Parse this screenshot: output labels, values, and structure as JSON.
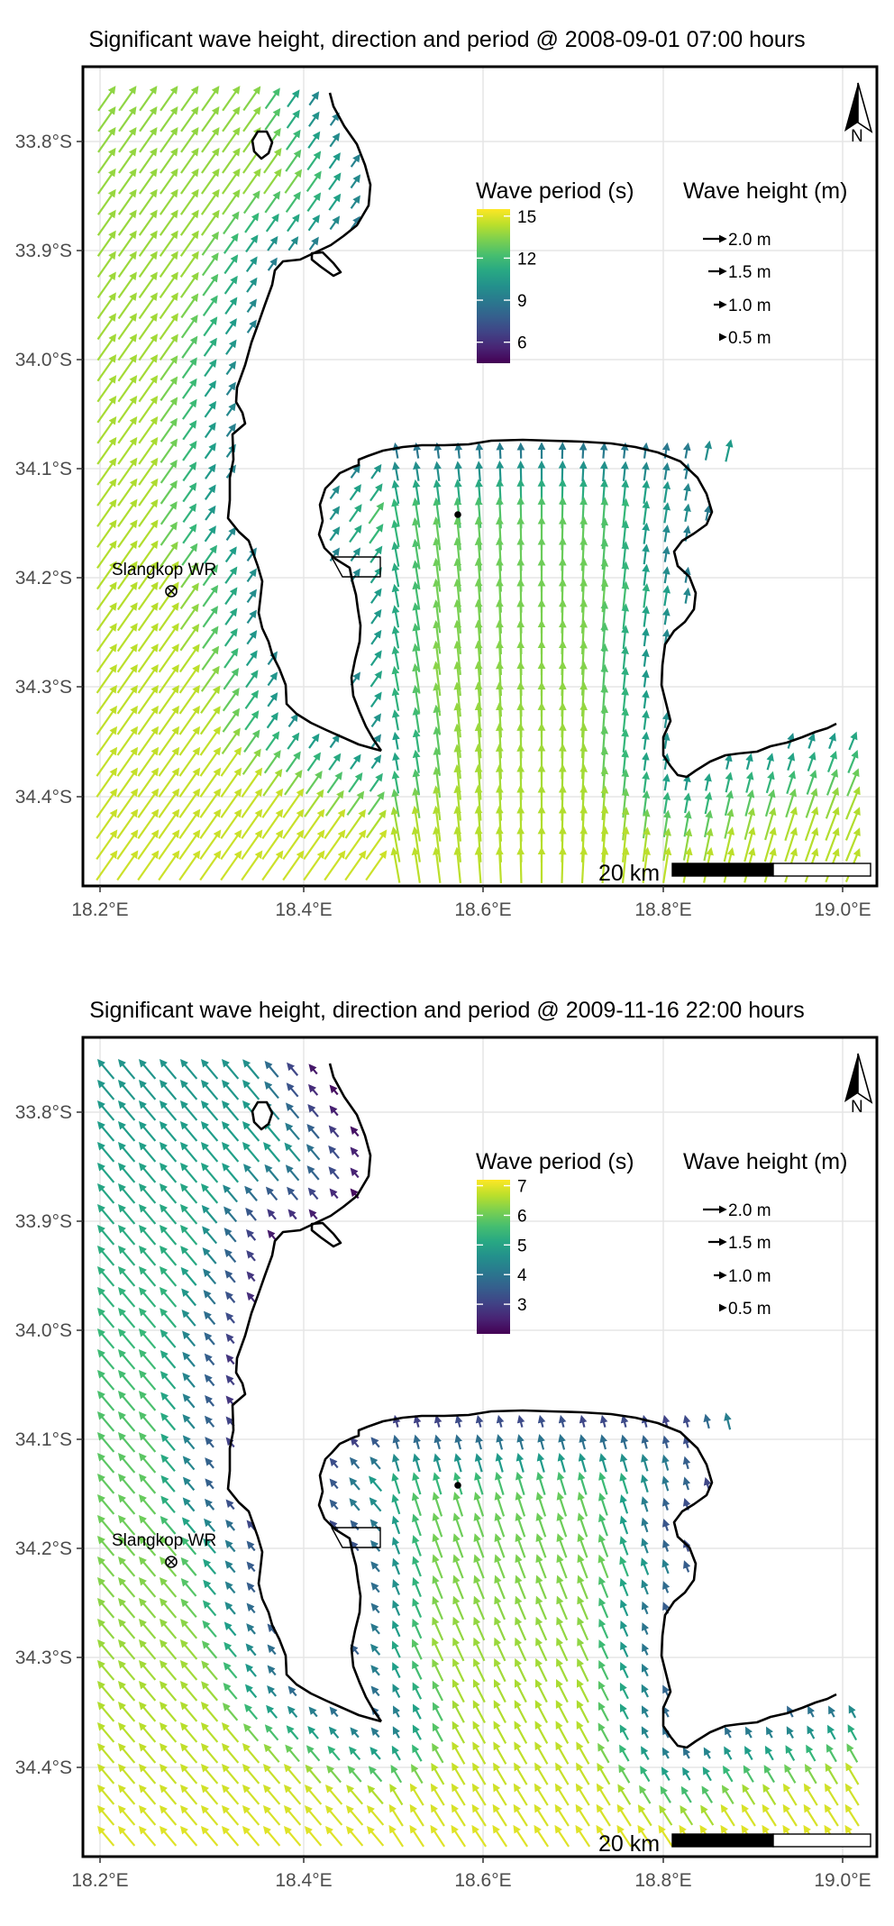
{
  "panels": [
    {
      "title": "Significant wave height, direction and period @ 2008-09-01 07:00 hours",
      "period_legend": {
        "title": "Wave period (s)",
        "ticks": [
          15,
          12,
          9,
          6
        ],
        "min": 4.5,
        "max": 15.5
      },
      "height_legend": {
        "title": "Wave height (m)",
        "entries": [
          "2.0 m",
          "1.5 m",
          "1.0 m",
          "0.5 m"
        ]
      },
      "field": {
        "mode": "swell",
        "offshore_period": 13.5,
        "offshore_height": 2.0,
        "direction_toward_deg": 35
      }
    },
    {
      "title": "Significant wave height, direction and period @ 2009-11-16 22:00 hours",
      "period_legend": {
        "title": "Wave period (s)",
        "ticks": [
          7,
          6,
          5,
          4,
          3
        ],
        "min": 2,
        "max": 7.2
      },
      "height_legend": {
        "title": "Wave height (m)",
        "entries": [
          "2.0 m",
          "1.5 m",
          "1.0 m",
          "0.5 m"
        ]
      },
      "field": {
        "mode": "wind",
        "offshore_period": 6.5,
        "offshore_height": 1.0,
        "direction_toward_deg": -40
      }
    }
  ],
  "axes": {
    "x_ticks": [
      "18.2°E",
      "18.4°E",
      "18.6°E",
      "18.8°E",
      "19.0°E"
    ],
    "y_ticks": [
      "33.8°S",
      "33.9°S",
      "34.0°S",
      "34.1°S",
      "34.2°S",
      "34.3°S",
      "34.4°S"
    ]
  },
  "labels": {
    "site": "Slangkop WR",
    "scale_bar": "20 km",
    "north": "N"
  },
  "colors": {
    "viridis_low": "#440154",
    "viridis_mid": "#21908C",
    "viridis_high": "#FDE725",
    "coast": "#000000",
    "grid": "#e5e5e5"
  }
}
